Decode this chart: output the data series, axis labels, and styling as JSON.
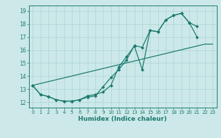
{
  "xlabel": "Humidex (Indice chaleur)",
  "bg_color": "#cce8e8",
  "line_color": "#1a7a6e",
  "grid_color": "#aad4d4",
  "xlim": [
    -0.5,
    23.5
  ],
  "ylim": [
    11.6,
    19.4
  ],
  "xticks": [
    0,
    1,
    2,
    3,
    4,
    5,
    6,
    7,
    8,
    9,
    10,
    11,
    12,
    13,
    14,
    15,
    16,
    17,
    18,
    19,
    20,
    21,
    22,
    23
  ],
  "yticks": [
    12,
    13,
    14,
    15,
    16,
    17,
    18,
    19
  ],
  "line1_x": [
    0,
    1,
    2,
    3,
    4,
    5,
    6,
    7,
    8,
    9,
    10,
    11,
    12,
    13,
    14,
    15,
    16,
    17,
    18,
    19,
    20,
    21
  ],
  "line1_y": [
    13.3,
    12.6,
    12.45,
    12.2,
    12.1,
    12.1,
    12.2,
    12.4,
    12.5,
    13.2,
    13.9,
    14.5,
    15.25,
    16.35,
    16.2,
    17.5,
    17.4,
    18.3,
    18.65,
    18.8,
    18.1,
    17.8
  ],
  "line2_x": [
    0,
    1,
    2,
    3,
    4,
    5,
    6,
    7,
    8,
    9,
    10,
    11,
    12,
    13,
    14,
    15,
    16,
    17,
    18,
    19,
    20,
    21
  ],
  "line2_y": [
    13.3,
    12.6,
    12.45,
    12.2,
    12.1,
    12.1,
    12.2,
    12.5,
    12.6,
    12.8,
    13.3,
    14.7,
    15.5,
    16.3,
    14.5,
    17.5,
    17.4,
    18.3,
    18.65,
    18.8,
    18.1,
    17.0
  ],
  "line3_x": [
    0,
    22,
    23
  ],
  "line3_y": [
    13.3,
    16.45,
    16.45
  ],
  "marker_size": 2.2,
  "linewidth": 0.9
}
